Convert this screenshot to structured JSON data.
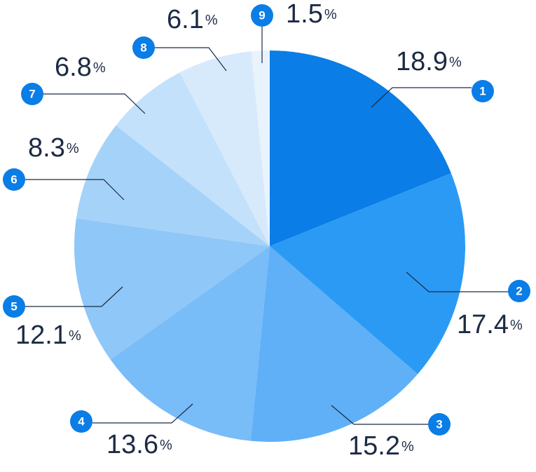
{
  "chart_data": {
    "type": "pie",
    "categories": [
      "1",
      "2",
      "3",
      "4",
      "5",
      "6",
      "7",
      "8",
      "9"
    ],
    "values": [
      18.9,
      17.4,
      15.2,
      13.6,
      12.1,
      8.3,
      6.8,
      6.1,
      1.5
    ],
    "unit": "%",
    "colors": [
      "#0a7de6",
      "#2b9af5",
      "#5fb0f7",
      "#78bcf8",
      "#8ec7f8",
      "#a5d2f9",
      "#c4e1fb",
      "#d7eafc",
      "#e8f3fd"
    ]
  }
}
